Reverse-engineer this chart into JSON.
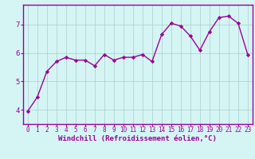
{
  "x": [
    0,
    1,
    2,
    3,
    4,
    5,
    6,
    7,
    8,
    9,
    10,
    11,
    12,
    13,
    14,
    15,
    16,
    17,
    18,
    19,
    20,
    21,
    22,
    23
  ],
  "y": [
    3.95,
    4.45,
    5.35,
    5.7,
    5.85,
    5.75,
    5.75,
    5.55,
    5.95,
    5.75,
    5.85,
    5.85,
    5.95,
    5.7,
    6.65,
    7.05,
    6.95,
    6.6,
    6.1,
    6.75,
    7.25,
    7.3,
    7.05,
    5.95
  ],
  "line_color": "#990099",
  "marker": "D",
  "markersize": 2.2,
  "linewidth": 1.0,
  "xlabel": "Windchill (Refroidissement éolien,°C)",
  "xlabel_fontsize": 6.5,
  "ylabel_ticks": [
    4,
    5,
    6,
    7
  ],
  "xtick_labels": [
    "0",
    "1",
    "2",
    "3",
    "4",
    "5",
    "6",
    "7",
    "8",
    "9",
    "10",
    "11",
    "12",
    "13",
    "14",
    "15",
    "16",
    "17",
    "18",
    "19",
    "20",
    "21",
    "22",
    "23"
  ],
  "ylim": [
    3.5,
    7.7
  ],
  "xlim": [
    -0.5,
    23.5
  ],
  "bg_color": "#d5f5f5",
  "grid_color": "#aacccc",
  "tick_color": "#990099",
  "tick_fontsize": 5.5,
  "xlabel_color": "#990099",
  "spine_color": "#990099"
}
